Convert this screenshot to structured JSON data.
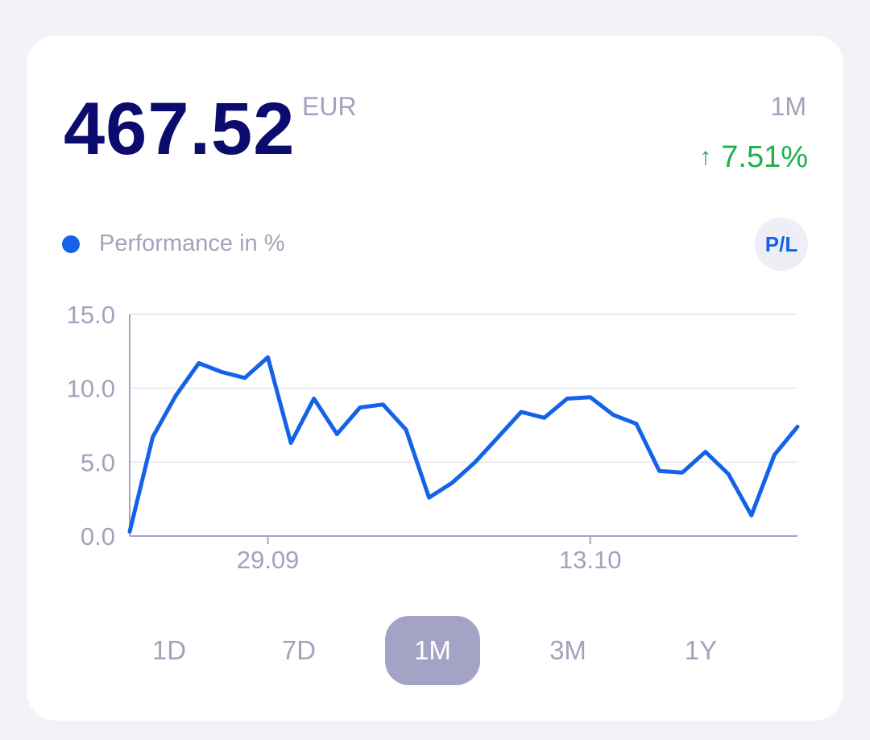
{
  "header": {
    "value": "467.52",
    "currency": "EUR",
    "period": "1M",
    "change_arrow": "↑",
    "change_percent": "7.51%"
  },
  "legend": {
    "label": "Performance in %",
    "dot_color": "#1462e8"
  },
  "pl_button": {
    "label": "P/L"
  },
  "ranges": [
    {
      "label": "1D",
      "active": false
    },
    {
      "label": "7D",
      "active": false
    },
    {
      "label": "1M",
      "active": true
    },
    {
      "label": "3M",
      "active": false
    },
    {
      "label": "1Y",
      "active": false
    }
  ],
  "colors": {
    "value": "#0c0b6e",
    "positive": "#1fb04a",
    "line": "#1462e8",
    "muted": "#a3a2bd",
    "active_range": "#a4a3c6"
  },
  "chart_data": {
    "type": "line",
    "ylim": [
      0,
      15
    ],
    "y_ticks": [
      "15.0",
      "10.0",
      "5.0",
      "0.0"
    ],
    "x_ticks": [
      {
        "label": "29.09",
        "index": 6
      },
      {
        "label": "13.10",
        "index": 20
      }
    ],
    "grid": true,
    "series": [
      {
        "values": [
          0.3,
          6.7,
          9.5,
          11.7,
          11.1,
          10.7,
          12.1,
          6.3,
          9.3,
          6.9,
          8.7,
          8.9,
          7.2,
          2.6,
          3.6,
          5.0,
          6.7,
          8.4,
          8.0,
          9.3,
          9.4,
          8.2,
          7.6,
          4.4,
          4.3,
          5.7,
          4.2,
          1.4,
          5.5,
          7.4
        ]
      }
    ]
  }
}
